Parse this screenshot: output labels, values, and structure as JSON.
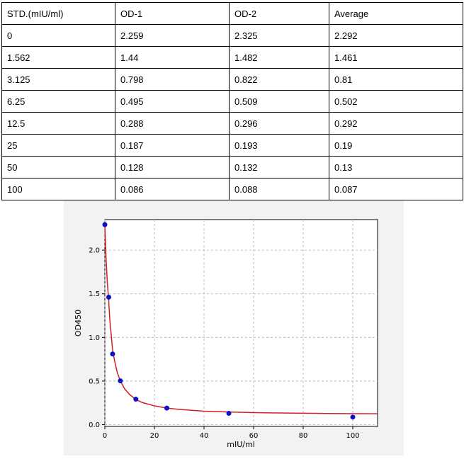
{
  "table": {
    "headers": [
      "STD.(mIU/ml)",
      "OD-1",
      "OD-2",
      "Average"
    ],
    "rows": [
      [
        "0",
        "2.259",
        "2.325",
        "2.292"
      ],
      [
        "1.562",
        "1.44",
        "1.482",
        "1.461"
      ],
      [
        "3.125",
        "0.798",
        "0.822",
        "0.81"
      ],
      [
        "6.25",
        "0.495",
        "0.509",
        "0.502"
      ],
      [
        "12.5",
        "0.288",
        "0.296",
        "0.292"
      ],
      [
        "25",
        "0.187",
        "0.193",
        "0.19"
      ],
      [
        "50",
        "0.128",
        "0.132",
        "0.13"
      ],
      [
        "100",
        "0.086",
        "0.088",
        "0.087"
      ]
    ]
  },
  "chart_data": {
    "type": "scatter",
    "title": "",
    "xlabel": "mIU/ml",
    "ylabel": "OD450",
    "xlim": [
      0,
      110
    ],
    "ylim": [
      -0.02,
      2.35
    ],
    "xticks": [
      0,
      20,
      40,
      60,
      80,
      100
    ],
    "yticks": [
      0.0,
      0.5,
      1.0,
      1.5,
      2.0
    ],
    "xtick_labels": [
      "0",
      "20",
      "40",
      "60",
      "80",
      "100"
    ],
    "ytick_labels": [
      "0.0",
      "0.5",
      "1.0",
      "1.5",
      "2.0"
    ],
    "grid": true,
    "points": {
      "x": [
        0,
        1.562,
        3.125,
        6.25,
        12.5,
        25,
        50,
        100
      ],
      "y": [
        2.292,
        1.461,
        0.81,
        0.502,
        0.292,
        0.19,
        0.13,
        0.087
      ],
      "color": "#1010cc"
    },
    "fit_curve": {
      "color": "#cc2222",
      "x": [
        0,
        0.5,
        1,
        1.562,
        2,
        3.125,
        4,
        5,
        6.25,
        8,
        10,
        12.5,
        15,
        20,
        25,
        30,
        40,
        50,
        60,
        70,
        80,
        90,
        100,
        110
      ],
      "y": [
        2.292,
        1.9,
        1.63,
        1.42,
        1.2,
        0.86,
        0.72,
        0.6,
        0.5,
        0.41,
        0.345,
        0.29,
        0.255,
        0.215,
        0.19,
        0.175,
        0.155,
        0.145,
        0.138,
        0.134,
        0.131,
        0.128,
        0.126,
        0.125
      ]
    }
  }
}
